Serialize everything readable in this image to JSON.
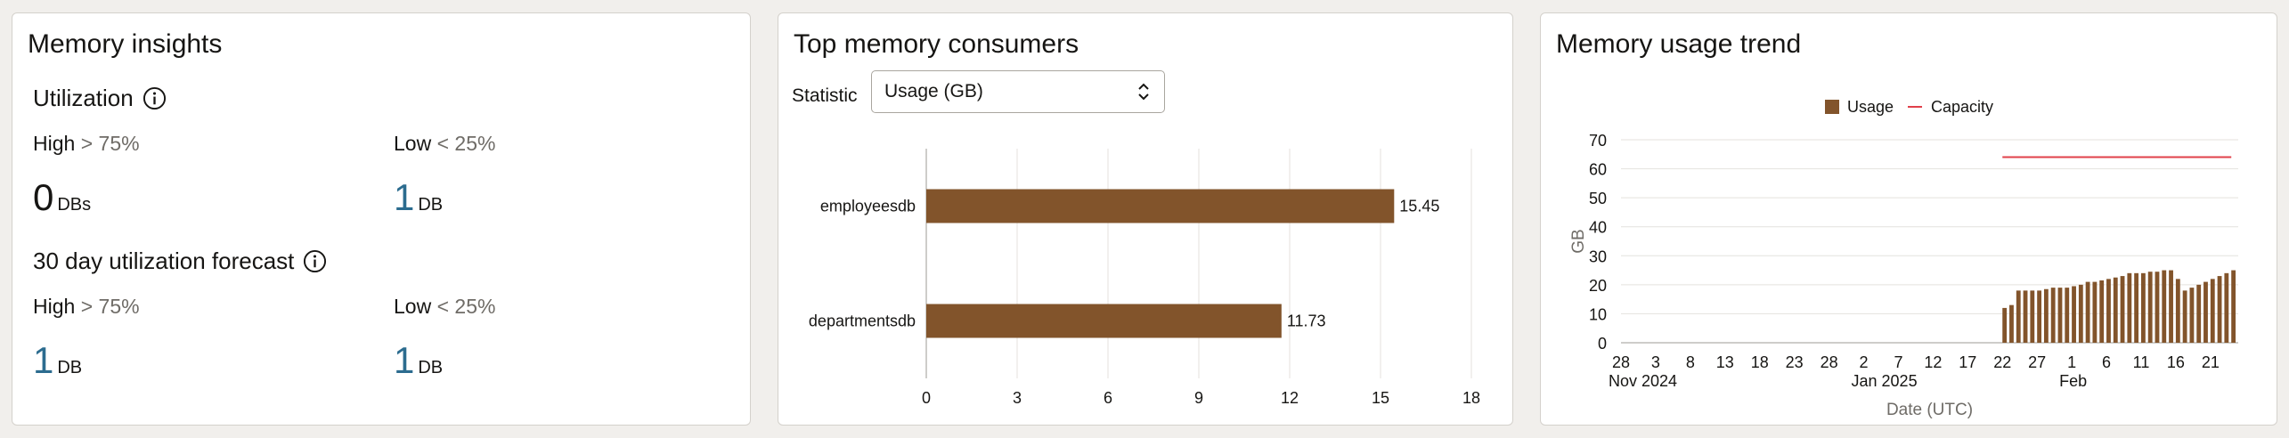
{
  "insights": {
    "title": "Memory insights",
    "utilization": {
      "title": "Utilization",
      "high_label": "High",
      "high_threshold": "> 75%",
      "low_label": "Low",
      "low_threshold": "< 25%",
      "high_value": "0",
      "high_unit": "DBs",
      "low_value": "1",
      "low_unit": "DB"
    },
    "forecast": {
      "title": "30 day utilization forecast",
      "high_label": "High",
      "high_threshold": "> 75%",
      "low_label": "Low",
      "low_threshold": "< 25%",
      "high_value": "1",
      "high_unit": "DB",
      "low_value": "1",
      "low_unit": "DB"
    }
  },
  "consumers": {
    "title": "Top memory consumers",
    "statistic_label": "Statistic",
    "statistic_value": "Usage (GB)"
  },
  "trend": {
    "title": "Memory usage trend"
  },
  "colors": {
    "bar": "#82542b",
    "capacity": "#e0404a",
    "accent_blue": "#2c6c8f"
  },
  "chart_data": [
    {
      "type": "bar",
      "orientation": "horizontal",
      "categories": [
        "employeesdb",
        "departmentsdb"
      ],
      "values": [
        15.45,
        11.73
      ],
      "value_labels": [
        "15.45",
        "11.73"
      ],
      "xlim": [
        0,
        18
      ],
      "xticks": [
        "0",
        "3",
        "6",
        "9",
        "12",
        "15",
        "18"
      ],
      "grid": true
    },
    {
      "type": "bar",
      "title": "",
      "ylabel": "GB",
      "xlabel": "Date (UTC)",
      "ylim": [
        0,
        70
      ],
      "yticks": [
        "0",
        "10",
        "20",
        "30",
        "40",
        "50",
        "60",
        "70"
      ],
      "xticks": [
        {
          "day": "28",
          "month": "Nov 2024"
        },
        {
          "day": "3",
          "month": ""
        },
        {
          "day": "8",
          "month": ""
        },
        {
          "day": "13",
          "month": ""
        },
        {
          "day": "18",
          "month": ""
        },
        {
          "day": "23",
          "month": ""
        },
        {
          "day": "28",
          "month": ""
        },
        {
          "day": "2",
          "month": "Jan 2025"
        },
        {
          "day": "7",
          "month": ""
        },
        {
          "day": "12",
          "month": ""
        },
        {
          "day": "17",
          "month": ""
        },
        {
          "day": "22",
          "month": ""
        },
        {
          "day": "27",
          "month": ""
        },
        {
          "day": "1",
          "month": "Feb"
        },
        {
          "day": "6",
          "month": ""
        },
        {
          "day": "11",
          "month": ""
        },
        {
          "day": "16",
          "month": ""
        },
        {
          "day": "21",
          "month": ""
        }
      ],
      "legend": "top-center",
      "series": [
        {
          "name": "Usage",
          "kind": "bar",
          "start_date": "2025-01-22",
          "values": [
            12,
            13,
            18,
            18,
            18,
            18,
            18.5,
            19,
            19,
            19,
            19.5,
            20,
            21,
            21,
            21.5,
            22,
            22.5,
            23,
            24,
            24,
            24,
            24.5,
            24.5,
            25,
            25,
            22,
            18,
            19,
            20,
            21,
            22,
            23,
            24,
            25
          ]
        },
        {
          "name": "Capacity",
          "kind": "line",
          "start_date": "2025-01-22",
          "end_date": "2025-02-24",
          "value": 64
        }
      ]
    }
  ]
}
